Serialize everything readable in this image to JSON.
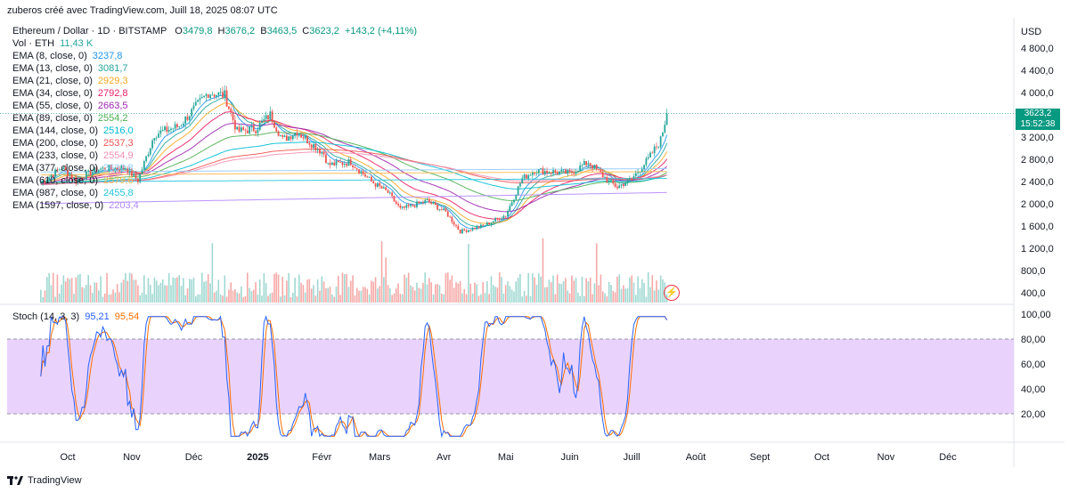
{
  "header": {
    "text": "zuberos créé avec TradingView.com, Juill 18, 2025 08:07 UTC"
  },
  "symbol": {
    "title": "Ethereum / Dollar · 1D · BITSTAMP",
    "o_label": "O",
    "o": "3479,8",
    "h_label": "H",
    "h": "3676,2",
    "l_label": "B",
    "l": "3463,5",
    "c_label": "C",
    "c": "3623,2",
    "change": "+143,2 (+4,11%)"
  },
  "volume": {
    "label": "Vol · ETH",
    "value": "11,43 K"
  },
  "ema_legend": [
    {
      "label": "EMA (8, close, 0)",
      "value": "3237,8",
      "color": "#2196f3"
    },
    {
      "label": "EMA (13, close, 0)",
      "value": "3081,7",
      "color": "#26a69a"
    },
    {
      "label": "EMA (21, close, 0)",
      "value": "2929,3",
      "color": "#f9a825"
    },
    {
      "label": "EMA (34, close, 0)",
      "value": "2792,8",
      "color": "#e91e63"
    },
    {
      "label": "EMA (55, close, 0)",
      "value": "2663,5",
      "color": "#9c27b0"
    },
    {
      "label": "EMA (89, close, 0)",
      "value": "2554,2",
      "color": "#4caf50"
    },
    {
      "label": "EMA (144, close, 0)",
      "value": "2516,0",
      "color": "#00bcd4"
    },
    {
      "label": "EMA (200, close, 0)",
      "value": "2537,3",
      "color": "#ef5350"
    },
    {
      "label": "EMA (233, close, 0)",
      "value": "2554,9",
      "color": "#f48fb1"
    },
    {
      "label": "EMA (377, close, 0)",
      "value": "2632,8",
      "color": "#90caf9"
    },
    {
      "label": "EMA (610, close, 0)",
      "value": "2579,6",
      "color": "#ffb74d"
    },
    {
      "label": "EMA (987, close, 0)",
      "value": "2455,8",
      "color": "#26c6da"
    },
    {
      "label": "EMA (1597, close, 0)",
      "value": "2203,4",
      "color": "#b388ff"
    }
  ],
  "stoch": {
    "label": "Stoch (14, 3, 3)",
    "k": "95,21",
    "d": "95,54",
    "k_color": "#2962ff",
    "d_color": "#ff6d00",
    "band_color": "#e1c4fb"
  },
  "price_axis": {
    "unit": "USD",
    "ticks": [
      "4 800,0",
      "4 400,0",
      "4 000,0",
      "3 600,0",
      "3 200,0",
      "2 800,0",
      "2 400,0",
      "2 000,0",
      "1 600,0",
      "1 200,0",
      "800,0",
      "400,0"
    ]
  },
  "stoch_axis": {
    "ticks": [
      "100,00",
      "80,00",
      "60,00",
      "40,00",
      "20,00"
    ]
  },
  "last_price": {
    "value": "3623,2",
    "countdown": "15:52:38"
  },
  "footer": {
    "brand": "TradingView"
  },
  "chart_data": {
    "type": "candlestick",
    "x_ticks": [
      "Oct",
      "Nov",
      "Déc",
      "2025",
      "Févr",
      "Mars",
      "Avr",
      "Mai",
      "Juin",
      "Juill",
      "Août",
      "Sept",
      "Oct",
      "Nov",
      "Déc"
    ],
    "price_range": [
      1200,
      4900
    ],
    "close_path": [
      [
        "2024-09-18",
        2380
      ],
      [
        "2024-09-28",
        2650
      ],
      [
        "2024-10-05",
        2420
      ],
      [
        "2024-10-15",
        2620
      ],
      [
        "2024-10-29",
        2650
      ],
      [
        "2024-11-04",
        2420
      ],
      [
        "2024-11-12",
        3250
      ],
      [
        "2024-11-24",
        3400
      ],
      [
        "2024-12-01",
        3700
      ],
      [
        "2024-12-08",
        4000
      ],
      [
        "2024-12-16",
        3950
      ],
      [
        "2024-12-22",
        3300
      ],
      [
        "2024-12-31",
        3350
      ],
      [
        "2025-01-07",
        3600
      ],
      [
        "2025-01-13",
        3150
      ],
      [
        "2025-01-20",
        3300
      ],
      [
        "2025-02-02",
        2900
      ],
      [
        "2025-02-04",
        2700
      ],
      [
        "2025-02-15",
        2750
      ],
      [
        "2025-02-25",
        2400
      ],
      [
        "2025-03-05",
        2200
      ],
      [
        "2025-03-11",
        1900
      ],
      [
        "2025-03-24",
        2050
      ],
      [
        "2025-04-02",
        1850
      ],
      [
        "2025-04-09",
        1500
      ],
      [
        "2025-04-20",
        1600
      ],
      [
        "2025-05-01",
        1800
      ],
      [
        "2025-05-09",
        2450
      ],
      [
        "2025-05-15",
        2600
      ],
      [
        "2025-06-01",
        2550
      ],
      [
        "2025-06-10",
        2750
      ],
      [
        "2025-06-20",
        2400
      ],
      [
        "2025-06-24",
        2300
      ],
      [
        "2025-07-01",
        2450
      ],
      [
        "2025-07-09",
        2800
      ],
      [
        "2025-07-15",
        3150
      ],
      [
        "2025-07-18",
        3623.2
      ]
    ],
    "ema_final": [
      3237.8,
      3081.7,
      2929.3,
      2792.8,
      2663.5,
      2554.2,
      2516.0,
      2537.3,
      2554.9,
      2632.8,
      2579.6,
      2455.8,
      2203.4
    ],
    "stoch_range": [
      0,
      100
    ],
    "stoch_bands": [
      20,
      80
    ],
    "stoch_final": {
      "k": 95.21,
      "d": 95.54
    },
    "xlabel": "",
    "ylabel": ""
  }
}
